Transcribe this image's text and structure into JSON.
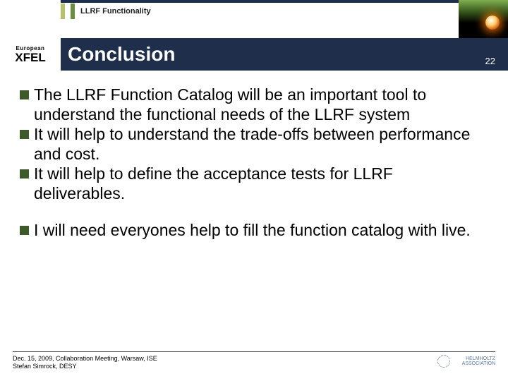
{
  "header": {
    "breadcrumb": "LLRF Functionality",
    "logo_top": "European",
    "logo_bottom": "XFEL",
    "title": "Conclusion",
    "page_number": "22"
  },
  "bullets_group1": [
    "The LLRF Function Catalog will be an important tool to understand the functional needs of the LLRF system",
    "It will help to understand the trade-offs between performance and cost.",
    "It will help to define the acceptance tests for LLRF deliverables."
  ],
  "bullets_group2": [
    "I will need everyones help to fill the function catalog with live."
  ],
  "footer": {
    "line1": "Dec. 15, 2009, Collaboration Meeting, Warsaw, ISE",
    "line2": "Stefan Simrock, DESY",
    "logo2_text": "HELMHOLTZ ASSOCIATION"
  },
  "colors": {
    "titlebar_bg": "#1f2e4a",
    "bullet_square": "#3d5a2a",
    "breadcrumb_box1": "#b8bf6e",
    "breadcrumb_box2": "#6a8d3f"
  }
}
